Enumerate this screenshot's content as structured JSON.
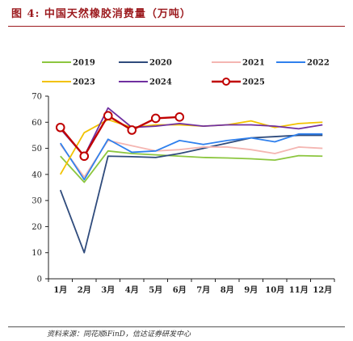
{
  "figure": {
    "title": "图 4:  中国天然橡胶消费量（万吨）",
    "source": "资料来源：同花顺iFinD，信达证券研发中心"
  },
  "chart_data": {
    "type": "line",
    "title": "",
    "xlabel": "",
    "ylabel": "",
    "categories": [
      "1月",
      "2月",
      "3月",
      "4月",
      "5月",
      "6月",
      "7月",
      "8月",
      "9月",
      "10月",
      "11月",
      "12月"
    ],
    "ylim": [
      0,
      70
    ],
    "yticks": [
      0,
      10,
      20,
      30,
      40,
      50,
      60,
      70
    ],
    "grid": false,
    "legend_placement": "top",
    "series": [
      {
        "name": "2019",
        "color": "#8cc63f",
        "marker": false,
        "values": [
          47,
          37,
          49,
          48,
          47.5,
          47,
          46.5,
          46.3,
          46,
          45.5,
          47.2,
          47
        ]
      },
      {
        "name": "2020",
        "color": "#2f4b7c",
        "marker": false,
        "values": [
          34,
          10,
          47,
          46.8,
          46.5,
          48,
          50,
          52,
          54,
          54.5,
          55,
          55
        ]
      },
      {
        "name": "2021",
        "color": "#f4b6b2",
        "marker": false,
        "values": [
          51.5,
          39,
          53,
          51,
          49,
          49.5,
          50.5,
          50.5,
          49.5,
          48,
          50.5,
          50
        ]
      },
      {
        "name": "2022",
        "color": "#2f80ed",
        "marker": false,
        "values": [
          52,
          38,
          53.5,
          48.5,
          49,
          53,
          51.5,
          53,
          54,
          52.5,
          55.5,
          55.5
        ]
      },
      {
        "name": "2023",
        "color": "#f2c200",
        "marker": false,
        "values": [
          40,
          56,
          61,
          58,
          59,
          59,
          58.5,
          59,
          60.5,
          58,
          59.5,
          60
        ]
      },
      {
        "name": "2024",
        "color": "#7030a0",
        "marker": false,
        "values": [
          57.5,
          47,
          65.5,
          58,
          58.5,
          59.5,
          58.5,
          59,
          59,
          58.5,
          57.5,
          59
        ]
      },
      {
        "name": "2025",
        "color": "#c00000",
        "marker": true,
        "values": [
          58,
          47,
          62.5,
          57,
          61.5,
          62,
          null,
          null,
          null,
          null,
          null,
          null
        ]
      }
    ]
  }
}
